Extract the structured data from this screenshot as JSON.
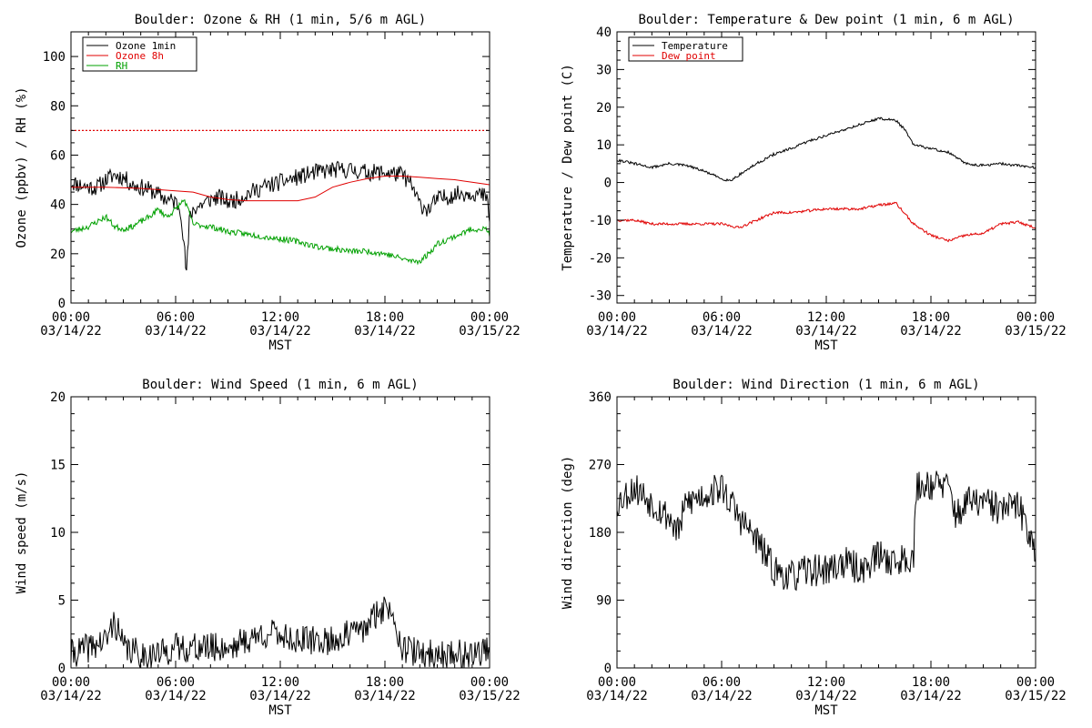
{
  "x_ticks": {
    "hours": [
      0,
      6,
      12,
      18,
      24
    ],
    "labels": [
      [
        "00:00",
        "03/14/22"
      ],
      [
        "06:00",
        "03/14/22"
      ],
      [
        "12:00",
        "03/14/22"
      ],
      [
        "18:00",
        "03/14/22"
      ],
      [
        "00:00",
        "03/15/22"
      ]
    ]
  },
  "colors": {
    "black": "#000000",
    "red": "#e00000",
    "green": "#00a000"
  },
  "chart_data": [
    {
      "type": "line",
      "title": "Boulder: Ozone & RH (1 min, 5/6 m AGL)",
      "xlabel": "MST",
      "ylabel": "Ozone (ppbv) / RH (%)",
      "xlim": [
        0,
        24
      ],
      "ylim": [
        0,
        110
      ],
      "yticks": [
        0,
        20,
        40,
        60,
        80,
        100
      ],
      "legend": {
        "placement": "top-left"
      },
      "reference_line": {
        "y": 70,
        "style": "dotted",
        "color": "#e00000"
      },
      "series": [
        {
          "name": "Ozone 1min",
          "color": "#000000",
          "noise": 3.5,
          "seed": 11,
          "legend": true,
          "x": [
            0,
            0.5,
            1,
            1.5,
            2,
            2.5,
            3,
            3.5,
            4,
            4.5,
            5,
            5.5,
            6,
            6.3,
            6.5,
            6.6,
            6.7,
            6.8,
            7,
            7.5,
            8,
            8.5,
            9,
            9.5,
            10,
            11,
            12,
            13,
            14,
            15,
            16,
            17,
            18,
            19,
            19.5,
            20,
            20.5,
            21,
            22,
            23,
            23.8,
            24
          ],
          "y": [
            49,
            48,
            47,
            47,
            50,
            52,
            51,
            48,
            47,
            46,
            44,
            42,
            41,
            38,
            22,
            12,
            20,
            35,
            38,
            40,
            42,
            43,
            41,
            42,
            44,
            47,
            49,
            51,
            53,
            54,
            54,
            53,
            53,
            52,
            48,
            40,
            38,
            42,
            44,
            45,
            43,
            35
          ]
        },
        {
          "name": "Ozone 8h",
          "color": "#e00000",
          "noise": 0,
          "seed": 0,
          "legend": true,
          "x": [
            0,
            2,
            4,
            5,
            6,
            7,
            8,
            9,
            10,
            12,
            13,
            14,
            15,
            16,
            17,
            18,
            19,
            20,
            21,
            22,
            23,
            24
          ],
          "y": [
            47,
            47,
            46.5,
            46,
            45.5,
            45,
            43,
            42,
            41.5,
            41.5,
            41.5,
            43,
            47,
            49,
            50.5,
            51.5,
            51.5,
            51,
            50.5,
            50,
            49,
            48
          ]
        },
        {
          "name": "RH",
          "color": "#00a000",
          "noise": 1.2,
          "seed": 23,
          "legend": true,
          "x": [
            0,
            1,
            1.5,
            2,
            2.5,
            3,
            3.5,
            4,
            4.5,
            5,
            5.5,
            6,
            6.5,
            7,
            8,
            9,
            10,
            11,
            12,
            13,
            14,
            15,
            16,
            17,
            18,
            18.5,
            19,
            19.5,
            20,
            20.5,
            21,
            22,
            23,
            23.8,
            24
          ],
          "y": [
            29,
            31,
            33,
            35,
            31,
            30,
            31,
            33,
            35,
            38,
            35,
            38,
            42,
            32,
            31,
            29,
            28,
            27,
            26,
            25,
            23,
            22,
            21,
            21,
            20,
            19,
            18,
            17,
            17,
            20,
            24,
            27,
            30,
            30,
            28
          ]
        }
      ]
    },
    {
      "type": "line",
      "title": "Boulder: Temperature & Dew point (1 min, 6 m AGL)",
      "xlabel": "MST",
      "ylabel": "Temperature / Dew point (C)",
      "xlim": [
        0,
        24
      ],
      "ylim": [
        -32,
        40
      ],
      "yticks": [
        -30,
        -20,
        -10,
        0,
        10,
        20,
        30,
        40
      ],
      "legend": {
        "placement": "top-left"
      },
      "series": [
        {
          "name": "Temperature",
          "color": "#000000",
          "noise": 0.35,
          "seed": 31,
          "legend": true,
          "x": [
            0,
            1,
            2,
            3,
            4,
            5,
            6,
            6.5,
            7,
            8,
            9,
            10,
            11,
            12,
            13,
            14,
            15,
            16,
            16.5,
            17,
            18,
            19,
            20,
            21,
            22,
            23,
            24
          ],
          "y": [
            6,
            5,
            4,
            5,
            4.5,
            3,
            1,
            0.5,
            2,
            5,
            7.5,
            9,
            11,
            12.5,
            14,
            15.5,
            17,
            16.5,
            14,
            10,
            9,
            8,
            5,
            4.5,
            5,
            4.5,
            4
          ]
        },
        {
          "name": "Dew point",
          "color": "#e00000",
          "noise": 0.35,
          "seed": 37,
          "legend": true,
          "x": [
            0,
            1,
            2,
            3,
            4,
            5,
            6,
            7,
            8,
            9,
            10,
            11,
            12,
            13,
            14,
            15,
            16,
            17,
            18,
            19,
            20,
            21,
            22,
            23,
            24
          ],
          "y": [
            -10,
            -10,
            -11,
            -11,
            -11,
            -11,
            -11,
            -12,
            -10,
            -8,
            -8,
            -7.5,
            -7,
            -7,
            -7,
            -6,
            -5.5,
            -11,
            -14,
            -15.5,
            -14,
            -13.5,
            -11,
            -10.5,
            -12
          ]
        }
      ]
    },
    {
      "type": "line",
      "title": "Boulder: Wind Speed (1 min, 6 m AGL)",
      "xlabel": "MST",
      "ylabel": "Wind speed (m/s)",
      "xlim": [
        0,
        24
      ],
      "ylim": [
        0,
        20
      ],
      "yticks": [
        0,
        5,
        10,
        15,
        20
      ],
      "series": [
        {
          "name": "",
          "color": "#000000",
          "noise": 1.1,
          "seed": 41,
          "legend": false,
          "clip_min": 0,
          "x": [
            0,
            1,
            2,
            2.5,
            3,
            4,
            5,
            6,
            7,
            8,
            9,
            10,
            11,
            12,
            13,
            14,
            15,
            16,
            17,
            17.5,
            18,
            18.5,
            19,
            20,
            21,
            22,
            23,
            24
          ],
          "y": [
            1,
            1.5,
            2,
            3.5,
            1.5,
            1,
            1,
            1.5,
            1.5,
            1.5,
            1.5,
            2,
            2.5,
            2.5,
            2,
            2,
            2,
            2.5,
            3,
            4,
            4.5,
            4,
            1.5,
            1,
            1,
            1,
            1,
            1.5
          ]
        }
      ]
    },
    {
      "type": "line",
      "title": "Boulder: Wind Direction (1 min, 6 m AGL)",
      "xlabel": "MST",
      "ylabel": "Wind direction (deg)",
      "xlim": [
        0,
        24
      ],
      "ylim": [
        0,
        360
      ],
      "yticks": [
        0,
        90,
        180,
        270,
        360
      ],
      "series": [
        {
          "name": "",
          "color": "#000000",
          "noise": 22,
          "seed": 53,
          "legend": false,
          "clip_min": 0,
          "clip_max": 360,
          "x": [
            0,
            1,
            2,
            3,
            3.5,
            4,
            5,
            6,
            7,
            8,
            9,
            10,
            11,
            12,
            13,
            14,
            15,
            16,
            17,
            17.2,
            18,
            19,
            19.5,
            20,
            21,
            22,
            23,
            24
          ],
          "y": [
            220,
            240,
            220,
            200,
            180,
            220,
            230,
            240,
            200,
            170,
            130,
            120,
            130,
            130,
            140,
            130,
            150,
            140,
            150,
            240,
            245,
            240,
            200,
            220,
            220,
            210,
            215,
            160
          ]
        }
      ]
    }
  ]
}
